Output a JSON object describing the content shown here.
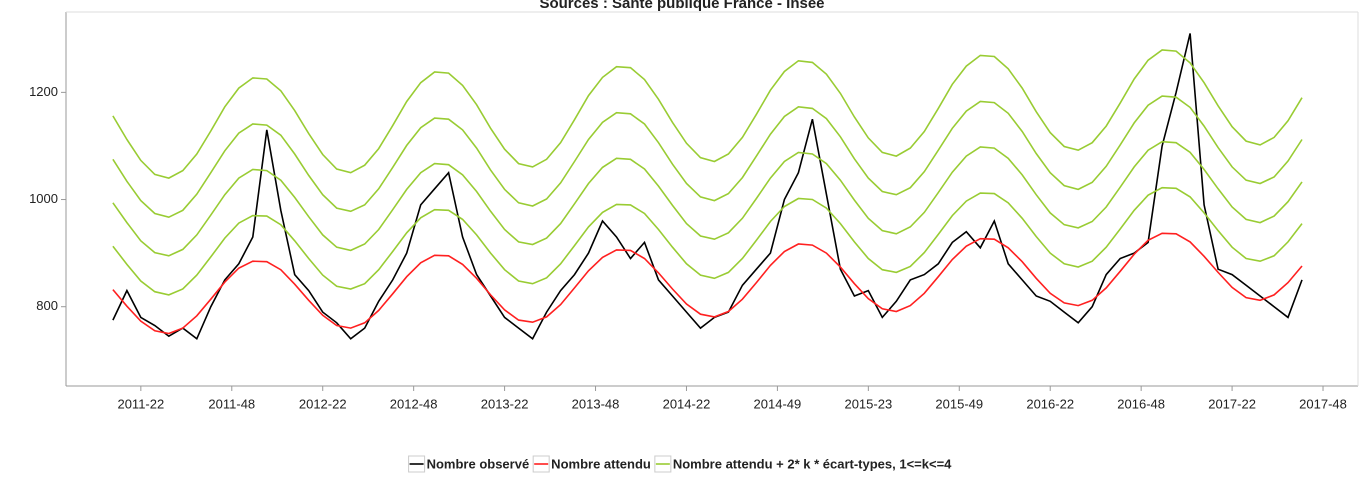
{
  "chart_data": {
    "type": "line",
    "title": "Sources : Santé publique France - Insee",
    "x": [
      -8,
      -4,
      0,
      4,
      8,
      12,
      16,
      20,
      24,
      28,
      32,
      36,
      40,
      44,
      48,
      52,
      56,
      60,
      64,
      68,
      72,
      76,
      80,
      84,
      88,
      92,
      96,
      100,
      104,
      108,
      112,
      116,
      120,
      124,
      128,
      132,
      136,
      140,
      144,
      148,
      152,
      156,
      160,
      164,
      168,
      172,
      176,
      180,
      184,
      188,
      192,
      196,
      200,
      204,
      208,
      212,
      216,
      220,
      224,
      228,
      232,
      236,
      240,
      244,
      248,
      252,
      256,
      260,
      264,
      268,
      272,
      276,
      280,
      284,
      288,
      292,
      296,
      300,
      304,
      308,
      312,
      316,
      320,
      324,
      328,
      332
    ],
    "xlim": [
      -21.4,
      348
    ],
    "xticks": [
      {
        "value": 0,
        "label": "2011-22"
      },
      {
        "value": 26,
        "label": "2011-48"
      },
      {
        "value": 52,
        "label": "2012-22"
      },
      {
        "value": 78,
        "label": "2012-48"
      },
      {
        "value": 104,
        "label": "2013-22"
      },
      {
        "value": 130,
        "label": "2013-48"
      },
      {
        "value": 156,
        "label": "2014-22"
      },
      {
        "value": 182,
        "label": "2014-49"
      },
      {
        "value": 208,
        "label": "2015-23"
      },
      {
        "value": 234,
        "label": "2015-49"
      },
      {
        "value": 260,
        "label": "2016-22"
      },
      {
        "value": 286,
        "label": "2016-48"
      },
      {
        "value": 312,
        "label": "2017-22"
      },
      {
        "value": 338,
        "label": "2017-48"
      }
    ],
    "ylim": [
      652,
      1350
    ],
    "yticks": [
      800,
      1000,
      1200
    ],
    "series": [
      {
        "name": "Nombre observé",
        "color": "#000000",
        "values": [
          775,
          830,
          780,
          765,
          745,
          760,
          740,
          800,
          850,
          880,
          930,
          1130,
          980,
          860,
          830,
          790,
          770,
          740,
          760,
          810,
          850,
          900,
          990,
          1020,
          1050,
          930,
          860,
          820,
          780,
          760,
          740,
          790,
          830,
          860,
          900,
          960,
          930,
          890,
          920,
          850,
          820,
          790,
          760,
          780,
          790,
          840,
          870,
          900,
          1000,
          1050,
          1150,
          1010,
          870,
          820,
          830,
          780,
          810,
          850,
          860,
          880,
          920,
          940,
          910,
          960,
          880,
          850,
          820,
          810,
          790,
          770,
          800,
          860,
          890,
          900,
          920,
          1100,
          1200,
          1310,
          990,
          870,
          860,
          840,
          820,
          800,
          780,
          850
        ]
      },
      {
        "name": "Nombre attendu",
        "color": "#ff2020",
        "values": [
          832,
          801,
          773,
          755,
          750,
          760,
          783,
          814,
          846,
          872,
          885,
          884,
          869,
          842,
          812,
          784,
          765,
          760,
          770,
          793,
          824,
          856,
          882,
          896,
          895,
          879,
          853,
          822,
          794,
          775,
          771,
          781,
          804,
          835,
          867,
          892,
          906,
          905,
          890,
          863,
          833,
          805,
          786,
          781,
          791,
          814,
          845,
          877,
          903,
          917,
          915,
          900,
          874,
          843,
          815,
          796,
          791,
          802,
          825,
          856,
          888,
          913,
          927,
          926,
          910,
          884,
          853,
          825,
          807,
          802,
          812,
          835,
          866,
          898,
          924,
          937,
          936,
          921,
          894,
          864,
          836,
          817,
          812,
          822,
          845,
          876
        ]
      },
      {
        "name": "Nombre attendu + 2* k * écart-types, 1<=k<=4",
        "color": "#99cc33",
        "values": [
          913,
          879,
          848,
          828,
          822,
          833,
          859,
          893,
          928,
          956,
          970,
          969,
          953,
          923,
          890,
          859,
          838,
          833,
          843,
          869,
          903,
          938,
          966,
          981,
          980,
          963,
          934,
          900,
          869,
          848,
          843,
          854,
          880,
          914,
          949,
          976,
          991,
          990,
          974,
          944,
          911,
          880,
          859,
          853,
          864,
          890,
          924,
          959,
          987,
          1002,
          1000,
          984,
          955,
          921,
          890,
          869,
          864,
          875,
          901,
          935,
          970,
          997,
          1012,
          1011,
          994,
          965,
          931,
          900,
          880,
          874,
          885,
          911,
          945,
          980,
          1008,
          1022,
          1021,
          1005,
          975,
          942,
          911,
          890,
          885,
          895,
          921,
          955
        ]
      },
      {
        "color": "#99cc33",
        "values": [
          994,
          957,
          923,
          901,
          895,
          907,
          934,
          971,
          1009,
          1040,
          1056,
          1054,
          1036,
          1004,
          968,
          934,
          911,
          905,
          917,
          944,
          981,
          1019,
          1050,
          1067,
          1065,
          1046,
          1015,
          978,
          944,
          921,
          916,
          928,
          955,
          992,
          1030,
          1060,
          1077,
          1075,
          1057,
          1025,
          989,
          955,
          932,
          926,
          938,
          965,
          1002,
          1040,
          1071,
          1088,
          1085,
          1067,
          1036,
          999,
          965,
          942,
          936,
          949,
          976,
          1013,
          1051,
          1081,
          1098,
          1096,
          1077,
          1046,
          1009,
          975,
          953,
          947,
          959,
          986,
          1023,
          1061,
          1092,
          1108,
          1106,
          1088,
          1056,
          1020,
          986,
          963,
          957,
          969,
          996,
          1033
        ]
      },
      {
        "color": "#99cc33",
        "values": [
          1075,
          1034,
          998,
          974,
          967,
          980,
          1010,
          1050,
          1091,
          1124,
          1141,
          1139,
          1120,
          1085,
          1045,
          1009,
          984,
          978,
          990,
          1020,
          1060,
          1101,
          1134,
          1152,
          1150,
          1130,
          1096,
          1055,
          1019,
          994,
          988,
          1001,
          1031,
          1071,
          1112,
          1144,
          1162,
          1160,
          1141,
          1106,
          1066,
          1030,
          1005,
          998,
          1011,
          1041,
          1081,
          1122,
          1155,
          1173,
          1170,
          1151,
          1117,
          1076,
          1040,
          1015,
          1009,
          1022,
          1052,
          1092,
          1133,
          1165,
          1183,
          1181,
          1161,
          1127,
          1086,
          1050,
          1026,
          1019,
          1032,
          1062,
          1102,
          1143,
          1176,
          1193,
          1191,
          1172,
          1137,
          1097,
          1061,
          1036,
          1030,
          1042,
          1072,
          1112
        ]
      },
      {
        "color": "#99cc33",
        "values": [
          1156,
          1112,
          1073,
          1047,
          1040,
          1054,
          1085,
          1128,
          1173,
          1208,
          1227,
          1225,
          1203,
          1166,
          1123,
          1084,
          1057,
          1050,
          1064,
          1095,
          1138,
          1183,
          1218,
          1238,
          1236,
          1213,
          1177,
          1133,
          1094,
          1067,
          1061,
          1075,
          1106,
          1149,
          1194,
          1228,
          1248,
          1246,
          1224,
          1187,
          1144,
          1105,
          1078,
          1071,
          1085,
          1116,
          1159,
          1204,
          1239,
          1259,
          1256,
          1234,
          1198,
          1154,
          1115,
          1088,
          1081,
          1096,
          1127,
          1170,
          1215,
          1249,
          1269,
          1267,
          1244,
          1208,
          1164,
          1125,
          1099,
          1092,
          1106,
          1137,
          1180,
          1225,
          1260,
          1279,
          1277,
          1255,
          1218,
          1175,
          1136,
          1109,
          1102,
          1116,
          1147,
          1190
        ]
      }
    ]
  }
}
